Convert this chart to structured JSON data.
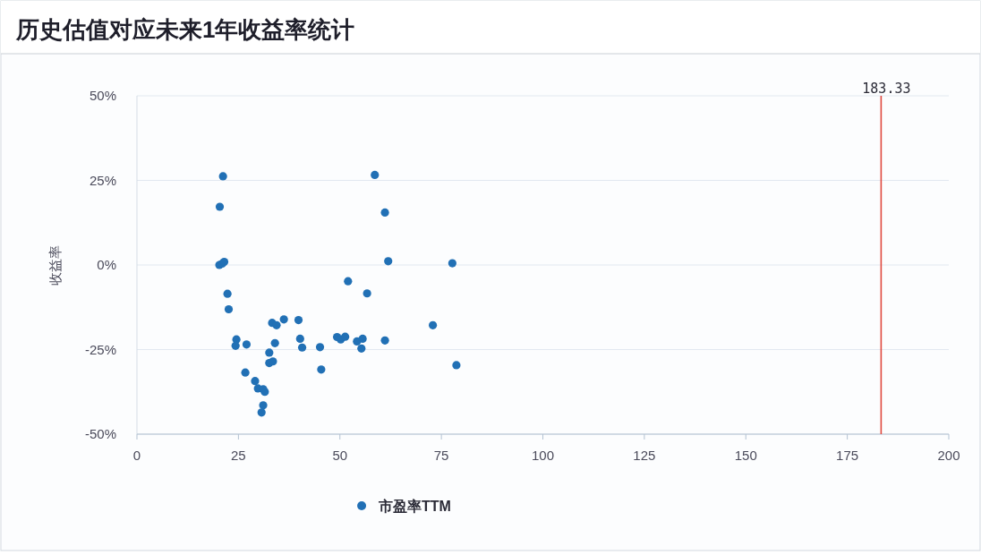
{
  "chart_data": {
    "type": "scatter",
    "title": "历史估值对应未来1年收益率统计",
    "ylabel": "收益率",
    "xlim": [
      0,
      200
    ],
    "ylim": [
      -50,
      50
    ],
    "xticks": [
      0,
      25,
      50,
      75,
      100,
      125,
      150,
      175,
      200
    ],
    "yticks": [
      {
        "value": -50,
        "label": "-50%"
      },
      {
        "value": -25,
        "label": "-25%"
      },
      {
        "value": 0,
        "label": "0%"
      },
      {
        "value": 25,
        "label": "25%"
      },
      {
        "value": 50,
        "label": "50%"
      }
    ],
    "grid": "y",
    "legend": "bottom",
    "marker": "circle",
    "series": [
      {
        "name": "市盈率TTM",
        "color": "#2170b5",
        "x": [
          21.2,
          20.4,
          20.3,
          21.0,
          21.5,
          22.3,
          22.6,
          24.5,
          24.3,
          27.0,
          26.7,
          29.1,
          29.8,
          31.1,
          31.5,
          31.1,
          30.7,
          32.6,
          32.6,
          33.5,
          33.3,
          34.4,
          36.2,
          34.0,
          39.8,
          40.2,
          40.7,
          45.1,
          45.4,
          49.3,
          50.2,
          51.3,
          52.0,
          54.2,
          55.6,
          55.3,
          56.7,
          58.6,
          61.1,
          61.9,
          61.1,
          72.9,
          77.7,
          78.7
        ],
        "values": [
          26.2,
          17.2,
          0.0,
          0.4,
          0.9,
          -8.5,
          -13.1,
          -22.0,
          -23.9,
          -23.5,
          -31.8,
          -34.3,
          -36.5,
          -36.7,
          -37.5,
          -41.5,
          -43.6,
          -25.9,
          -29.0,
          -28.5,
          -17.1,
          -17.8,
          -16.1,
          -23.1,
          -16.3,
          -21.8,
          -24.4,
          -24.3,
          -30.9,
          -21.3,
          -22.0,
          -21.2,
          -4.8,
          -22.6,
          -21.8,
          -24.7,
          -8.4,
          26.6,
          15.5,
          1.1,
          -22.3,
          -17.8,
          0.5,
          -29.6
        ]
      }
    ],
    "ref_lines": [
      {
        "axis": "x",
        "value": 183.33,
        "label": "183.33",
        "color": "#e0483e"
      }
    ]
  }
}
